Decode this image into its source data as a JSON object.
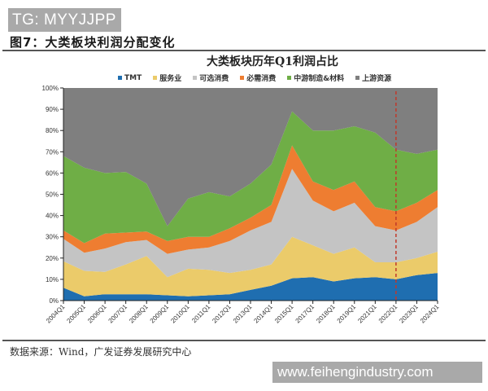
{
  "watermark_top": "TG: MYYJJPP",
  "figure_title": "图7：大类板块利润分配变化",
  "source_note": "数据来源：Wind，广发证券发展研究中心",
  "watermark_bottom": "www.feihengindustry.com",
  "legend": [
    {
      "label": "TMT",
      "color": "#1f6eb0"
    },
    {
      "label": "服务业",
      "color": "#ebcb6a"
    },
    {
      "label": "可选消费",
      "color": "#c4c4c4"
    },
    {
      "label": "必需消费",
      "color": "#ee7d31"
    },
    {
      "label": "中游制造&材料",
      "color": "#6fae46"
    },
    {
      "label": "上游资源",
      "color": "#7f7f7f"
    }
  ],
  "chart_data": {
    "type": "area",
    "stacked": true,
    "title": "大类板块历年Q1利润占比",
    "xlabel": "",
    "ylabel": "",
    "ylim": [
      0,
      100
    ],
    "y_ticks": [
      "0%",
      "10%",
      "20%",
      "30%",
      "40%",
      "50%",
      "60%",
      "70%",
      "80%",
      "90%",
      "100%"
    ],
    "categories": [
      "2004Q1",
      "2005Q1",
      "2006Q1",
      "2007Q1",
      "2008Q1",
      "2009Q1",
      "2010Q1",
      "2011Q1",
      "2012Q1",
      "2013Q1",
      "2014Q1",
      "2015Q1",
      "2017Q1",
      "2018Q1",
      "2019Q1",
      "2021Q1",
      "2022Q1",
      "2023Q1",
      "2024Q1"
    ],
    "series": [
      {
        "name": "TMT",
        "color": "#1f6eb0",
        "values": [
          6,
          2,
          3,
          3,
          3,
          2.5,
          2,
          2.5,
          3,
          5,
          7,
          10.5,
          11,
          9,
          10.5,
          11,
          10,
          12,
          13
        ]
      },
      {
        "name": "服务业",
        "color": "#ebcb6a",
        "values": [
          12.5,
          12,
          10.5,
          14,
          18,
          8.5,
          13,
          12,
          10,
          9.5,
          10,
          19.5,
          15,
          13,
          14.5,
          7,
          8,
          8,
          10
        ]
      },
      {
        "name": "可选消费",
        "color": "#c4c4c4",
        "values": [
          10.5,
          8.5,
          11,
          10.5,
          7.5,
          11,
          9,
          10.5,
          15,
          18.5,
          20,
          32,
          21,
          20,
          21,
          17,
          15,
          17,
          21
        ]
      },
      {
        "name": "必需消费",
        "color": "#ee7d31",
        "values": [
          4,
          4.5,
          7,
          4.5,
          4,
          6,
          6,
          5,
          6,
          6,
          8,
          11,
          9,
          10,
          10,
          9,
          9,
          9,
          8
        ]
      },
      {
        "name": "中游制造&材料",
        "color": "#6fae46",
        "values": [
          35,
          35.5,
          28.5,
          28.5,
          22.5,
          7,
          18,
          21,
          15,
          16,
          19,
          16,
          24,
          28,
          26,
          35,
          29,
          23,
          19
        ]
      },
      {
        "name": "上游资源",
        "color": "#7f7f7f",
        "values": [
          32,
          37.5,
          40,
          39.5,
          45,
          65,
          52,
          49,
          51,
          45,
          36,
          11,
          20,
          20,
          18,
          21,
          29,
          31,
          29
        ]
      }
    ],
    "annotations": [
      {
        "type": "vertical-dashed-line",
        "at": "2022Q1",
        "color": "#c0392b"
      }
    ],
    "grid": false,
    "legend_position": "top"
  }
}
